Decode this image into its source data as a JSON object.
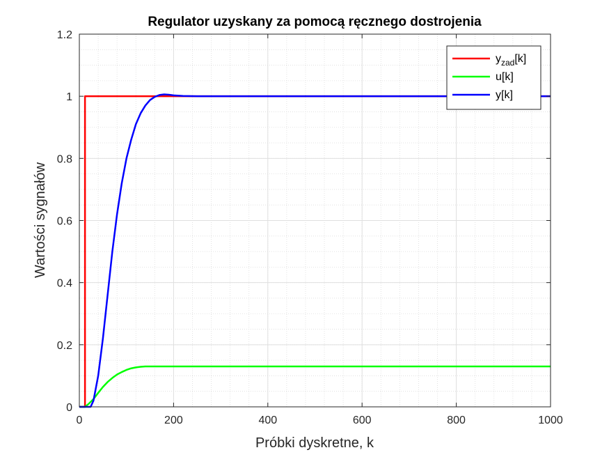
{
  "chart_data": {
    "type": "line",
    "title": "Regulator uzyskany za pomocą ręcznego dostrojenia",
    "xlabel": "Próbki dyskretne, k",
    "ylabel": "Wartości sygnałów",
    "xlim": [
      0,
      1000
    ],
    "ylim": [
      0,
      1.2
    ],
    "x_ticks": [
      0,
      200,
      400,
      600,
      800,
      1000
    ],
    "y_ticks": [
      0,
      0.2,
      0.4,
      0.6,
      0.8,
      1,
      1.2
    ],
    "x_tick_labels": [
      "0",
      "200",
      "400",
      "600",
      "800",
      "1000"
    ],
    "y_tick_labels": [
      "0",
      "0.2",
      "0.4",
      "0.6",
      "0.8",
      "1",
      "1.2"
    ],
    "grid": true,
    "minor_grid": true,
    "legend_position": "top-right",
    "legend": [
      {
        "text": "y",
        "sub": "zad",
        "suffix": "[k]",
        "color": "#ff0000"
      },
      {
        "text": "u[k]",
        "sub": "",
        "suffix": "",
        "color": "#00ff00"
      },
      {
        "text": "y[k]",
        "sub": "",
        "suffix": "",
        "color": "#0000ff"
      }
    ],
    "series": [
      {
        "key": "yzad",
        "color": "#ff0000",
        "x": [
          0,
          12,
          12,
          1000
        ],
        "y": [
          0,
          0,
          1,
          1
        ]
      },
      {
        "key": "u",
        "color": "#00ff00",
        "x": [
          0,
          12,
          20,
          30,
          40,
          50,
          60,
          70,
          80,
          90,
          100,
          110,
          120,
          130,
          140,
          150,
          170,
          200,
          300,
          1000
        ],
        "y": [
          0,
          0,
          0.01,
          0.025,
          0.045,
          0.064,
          0.08,
          0.093,
          0.104,
          0.112,
          0.119,
          0.124,
          0.127,
          0.129,
          0.13,
          0.13,
          0.13,
          0.13,
          0.13,
          0.13
        ]
      },
      {
        "key": "y",
        "color": "#0000ff",
        "x": [
          0,
          24,
          30,
          40,
          50,
          60,
          70,
          80,
          90,
          100,
          110,
          120,
          130,
          140,
          150,
          160,
          170,
          180,
          190,
          200,
          220,
          250,
          300,
          1000
        ],
        "y": [
          0,
          0,
          0.02,
          0.1,
          0.22,
          0.36,
          0.5,
          0.62,
          0.72,
          0.8,
          0.86,
          0.91,
          0.945,
          0.97,
          0.988,
          0.998,
          1.004,
          1.006,
          1.005,
          1.003,
          1.001,
          1.0,
          1.0,
          1.0
        ]
      }
    ]
  }
}
